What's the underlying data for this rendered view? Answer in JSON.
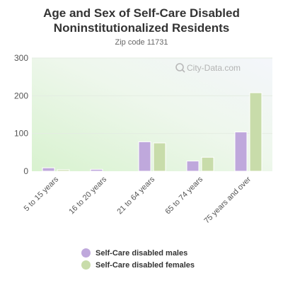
{
  "chart_data": {
    "type": "bar",
    "title": "Age and Sex of Self-Care Disabled Noninstitutionalized Residents",
    "subtitle": "Zip code 11731",
    "categories": [
      "5 to 15 years",
      "16 to 20 years",
      "21 to 64 years",
      "65 to 74 years",
      "75 years and over"
    ],
    "series": [
      {
        "name": "Self-Care disabled males",
        "color": "#bfa8dc",
        "values": [
          9,
          5,
          78,
          27,
          104
        ]
      },
      {
        "name": "Self-Care disabled females",
        "color": "#c8dcaa",
        "values": [
          4,
          0,
          75,
          37,
          208
        ]
      }
    ],
    "ylim": [
      0,
      300
    ],
    "yticks": [
      0,
      100,
      200,
      300
    ],
    "xlabel": "",
    "ylabel": "",
    "grid": true,
    "legend_position": "bottom",
    "watermark": "City-Data.com"
  }
}
